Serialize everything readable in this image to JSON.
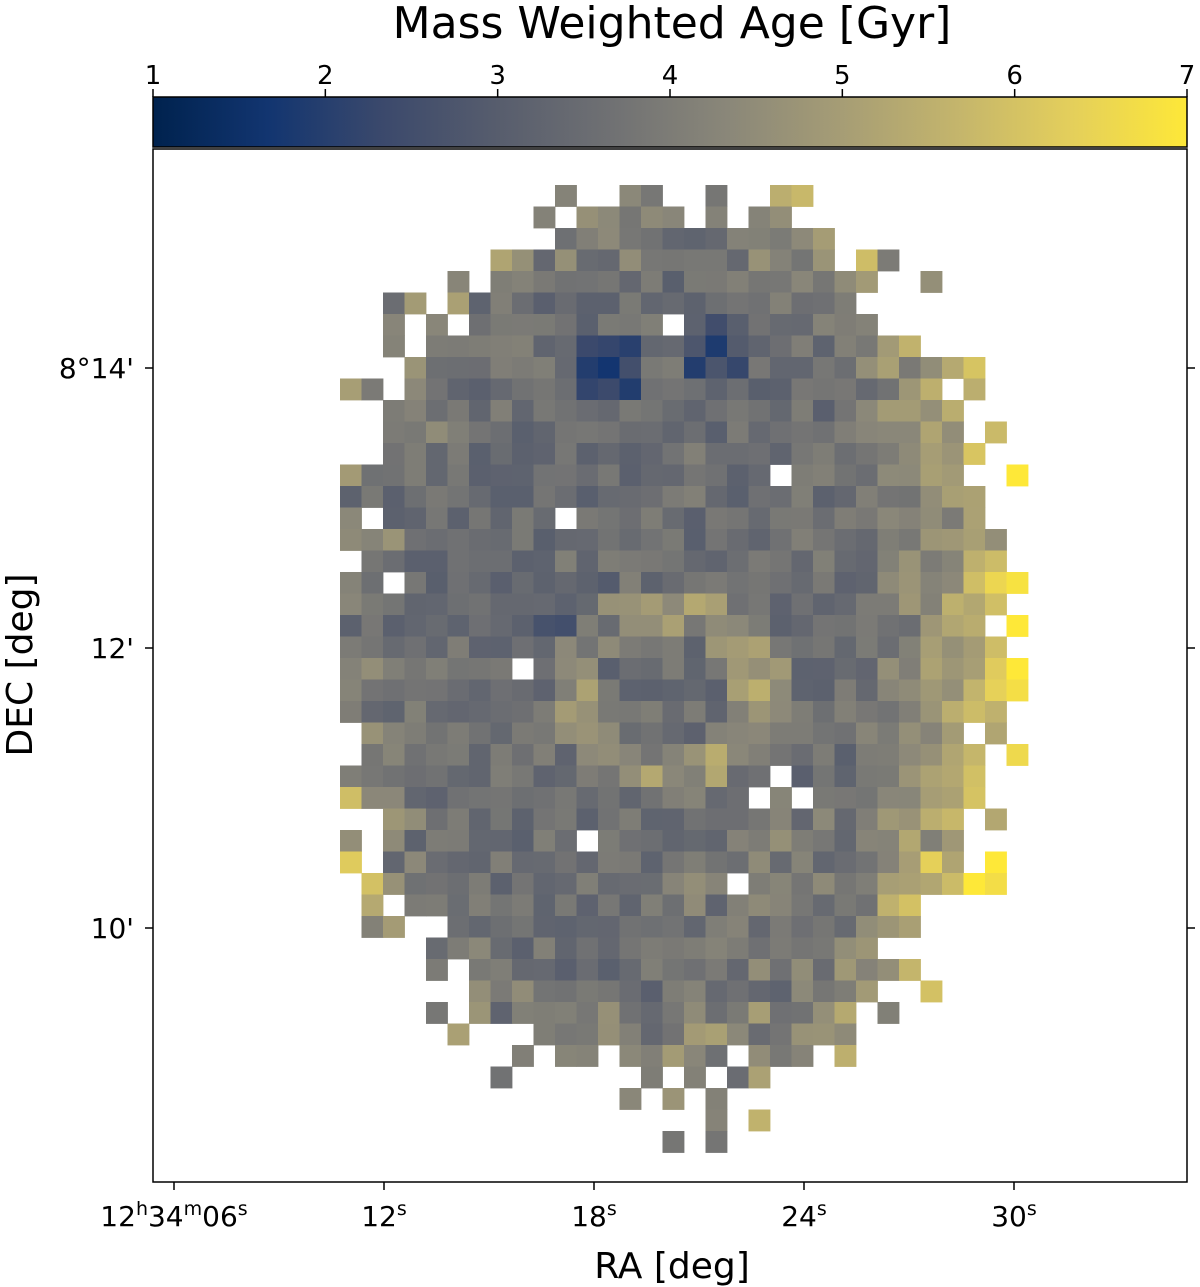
{
  "chart_data": {
    "type": "heatmap",
    "title": "",
    "colorbar": {
      "label": "Mass Weighted Age [Gyr]",
      "min": 1,
      "max": 7,
      "ticks": [
        "1",
        "2",
        "3",
        "4",
        "5",
        "6",
        "7"
      ],
      "colormap": "cividis",
      "colormap_stops": [
        "#00224e",
        "#123570",
        "#3b496c",
        "#575d6d",
        "#707173",
        "#8a8779",
        "#a69d75",
        "#c4b56c",
        "#e4cf5b",
        "#fee838"
      ]
    },
    "xlabel": "RA [deg]",
    "ylabel": "DEC [deg]",
    "x_ticks": [
      {
        "h": "12",
        "hs": "h",
        "m": "34",
        "ms": "m",
        "s": "06",
        "ss": "s"
      },
      {
        "h": "",
        "hs": "",
        "m": "",
        "ms": "",
        "s": "12",
        "ss": "s"
      },
      {
        "h": "",
        "hs": "",
        "m": "",
        "ms": "",
        "s": "18",
        "ss": "s"
      },
      {
        "h": "",
        "hs": "",
        "m": "",
        "ms": "",
        "s": "24",
        "ss": "s"
      },
      {
        "h": "",
        "hs": "",
        "m": "",
        "ms": "",
        "s": "30",
        "ss": "s"
      }
    ],
    "y_ticks": [
      "8°14'",
      "12'",
      "10'"
    ],
    "grid": false,
    "x_direction": "RA decreasing to the right (east-left)",
    "map_shape": "irregular galaxy-shaped patch of square spaxels, roughly 35 x 50 bins",
    "age_pattern": "mostly 3-4.5 Gyr grey-blue interior; older 5-7 Gyr yellow ring near centre and along right edge; youngest ~1.5-2 Gyr patches near top-center",
    "age_range_gyr": [
      1.5,
      7
    ]
  }
}
